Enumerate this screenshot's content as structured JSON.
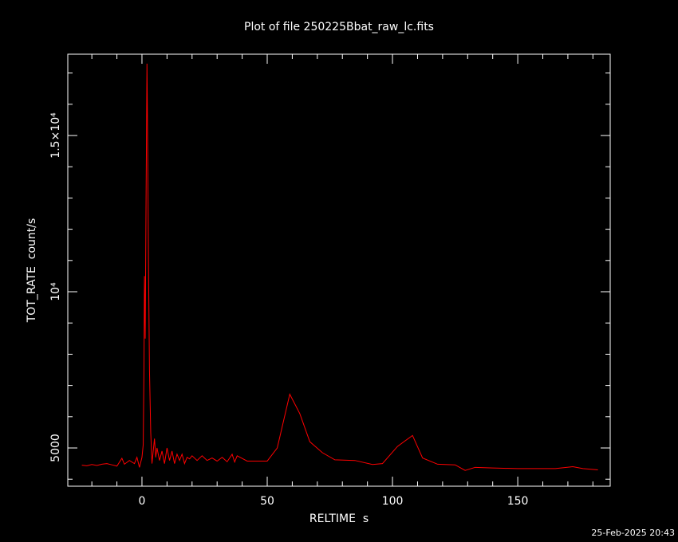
{
  "chart_data": {
    "type": "line",
    "title": "Plot of file 250225Bbat_raw_lc.fits",
    "x_label": "RELTIME  s",
    "y_label": "TOT_RATE  count/s",
    "footnote": "25-Feb-2025 20:43",
    "color": "#ff0000",
    "xlim": [
      -29.6,
      186.9
    ],
    "ylim": [
      3776,
      17602
    ],
    "xticks": [
      0,
      50,
      100,
      150
    ],
    "yticks": [
      5000,
      {
        "value": 10000,
        "label": "10⁴"
      },
      {
        "value": 15000,
        "label": "1.5×10⁴"
      }
    ],
    "xminorticks": [
      -20,
      -10,
      10,
      20,
      30,
      40,
      60,
      70,
      80,
      90,
      110,
      120,
      130,
      140,
      160,
      170,
      180
    ],
    "yminorticks": [
      4000,
      6000,
      7000,
      8000,
      9000,
      11000,
      12000,
      13000,
      14000,
      16000,
      17000
    ],
    "x": [
      -24,
      -22,
      -20,
      -18,
      -16,
      -14,
      -12,
      -10,
      -8,
      -7,
      -5,
      -3,
      -2,
      -1,
      0,
      0.5,
      0.8,
      1,
      1.3,
      1.6,
      2,
      2.3,
      2.6,
      3,
      3.5,
      4,
      5,
      5.5,
      6,
      7,
      8,
      9,
      10,
      11,
      12,
      13,
      14,
      15,
      16,
      17,
      18,
      19,
      20,
      22,
      24,
      26,
      28,
      30,
      32,
      34,
      36,
      37,
      38,
      42,
      50,
      54,
      59,
      63,
      67,
      72,
      77,
      85,
      92,
      96,
      102,
      108,
      112,
      118,
      125,
      129,
      133,
      140,
      150,
      165,
      172,
      176,
      182
    ],
    "values": [
      4450,
      4430,
      4470,
      4440,
      4480,
      4500,
      4460,
      4420,
      4670,
      4480,
      4600,
      4500,
      4700,
      4380,
      4700,
      5100,
      7500,
      10500,
      8500,
      12500,
      17300,
      14500,
      11000,
      7500,
      5500,
      4500,
      5300,
      4700,
      5000,
      4600,
      4900,
      4500,
      5000,
      4600,
      4900,
      4500,
      4800,
      4600,
      4800,
      4500,
      4700,
      4650,
      4750,
      4600,
      4750,
      4600,
      4680,
      4580,
      4700,
      4560,
      4800,
      4550,
      4750,
      4580,
      4580,
      5000,
      6720,
      6100,
      5200,
      4850,
      4620,
      4600,
      4470,
      4500,
      5050,
      5400,
      4680,
      4480,
      4460,
      4280,
      4380,
      4360,
      4340,
      4340,
      4400,
      4340,
      4300
    ]
  }
}
